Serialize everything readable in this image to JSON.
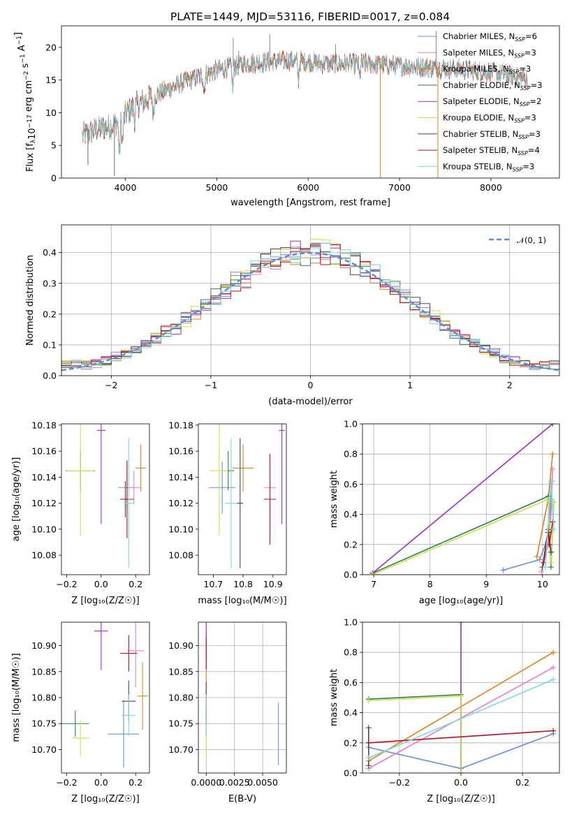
{
  "figure": {
    "title": "PLATE=1449, MJD=53116, FIBERID=0017, z=0.084"
  },
  "series_styles": [
    {
      "name": "Chabrier MILES",
      "nssp": "6",
      "color": "#6a8fd8"
    },
    {
      "name": "Salpeter MILES",
      "nssp": "3",
      "color": "#e880c0"
    },
    {
      "name": "Kroupa MILES",
      "nssp": "3",
      "color": "#e07f1d"
    },
    {
      "name": "Chabrier ELODIE",
      "nssp": "3",
      "color": "#2e7d4f"
    },
    {
      "name": "Salpeter ELODIE",
      "nssp": "2",
      "color": "#9b30b8"
    },
    {
      "name": "Kroupa ELODIE",
      "nssp": "3",
      "color": "#cbe04a"
    },
    {
      "name": "Chabrier STELIB",
      "nssp": "3",
      "color": "#4a4a4a"
    },
    {
      "name": "Salpeter STELIB",
      "nssp": "4",
      "color": "#b5121b"
    },
    {
      "name": "Kroupa STELIB",
      "nssp": "3",
      "color": "#7ed8e0"
    }
  ],
  "chart_data": [
    {
      "id": "spectrum",
      "type": "line",
      "xlabel": "wavelength [Angstrom, rest frame]",
      "ylabel_parts": {
        "pre": "Flux [f",
        "lambda": "λ",
        "post": "10",
        "exp": "−17",
        "units": " erg cm",
        "exp2": "−2",
        "units2": " s",
        "exp3": "−1",
        "units3": " A",
        "exp4": "−1",
        "close": "]"
      },
      "xlim": [
        3300,
        8750
      ],
      "ylim": [
        0,
        23.3
      ],
      "xticks": [
        4000,
        5000,
        6000,
        7000,
        8000
      ],
      "yticks": [
        0,
        5,
        10,
        15,
        20
      ],
      "continuum_knots": [
        [
          3530,
          6.5
        ],
        [
          3700,
          7.5
        ],
        [
          3850,
          8.0
        ],
        [
          3950,
          9.0
        ],
        [
          4100,
          11.0
        ],
        [
          4300,
          12.5
        ],
        [
          4600,
          14.5
        ],
        [
          5000,
          16.5
        ],
        [
          5300,
          17.5
        ],
        [
          5800,
          18.0
        ],
        [
          6200,
          17.5
        ],
        [
          6600,
          17.5
        ],
        [
          7000,
          17.2
        ],
        [
          7500,
          16.8
        ],
        [
          8000,
          16.2
        ],
        [
          8500,
          15.0
        ],
        [
          8750,
          14.5
        ]
      ],
      "absorption_features": [
        [
          3934,
          5.5
        ],
        [
          3969,
          4.0
        ],
        [
          4102,
          2.0
        ],
        [
          4305,
          3.0
        ],
        [
          4861,
          2.5
        ],
        [
          5175,
          3.5
        ],
        [
          5893,
          3.0
        ],
        [
          6563,
          2.0
        ]
      ],
      "spike_features": [
        [
          5180,
          21.5
        ],
        [
          5240,
          19.5
        ],
        [
          5580,
          22.0
        ],
        [
          6300,
          20.5
        ],
        [
          7400,
          22.5
        ]
      ],
      "drop_features": [
        [
          3880,
          0.3
        ],
        [
          6790,
          0.0
        ],
        [
          7420,
          0.0
        ],
        [
          3590,
          2.0
        ]
      ],
      "legend": "upper right"
    },
    {
      "id": "residuals",
      "type": "histogram",
      "xlabel": "(data-model)/error",
      "ylabel": "Normed distribution",
      "xlim": [
        -2.5,
        2.5
      ],
      "ylim": [
        0,
        0.49
      ],
      "xticks": [
        -2,
        -1,
        0,
        1,
        2
      ],
      "yticks": [
        0.0,
        0.1,
        0.2,
        0.3,
        0.4
      ],
      "bin_width": 0.1,
      "reference": {
        "label": "𝒩(0, 1)",
        "mean": 0,
        "sigma": 1,
        "color": "#5b8ed6"
      },
      "grid": true
    },
    {
      "id": "age-vs-Z",
      "type": "errorbar",
      "xlabel": "Z [log₁₀(Z/Z☉)]",
      "ylabel": "age  [log₁₀(age/yr)]",
      "xlim": [
        -0.23,
        0.28
      ],
      "ylim": [
        10.065,
        10.181
      ],
      "xticks": [
        -0.2,
        0.0,
        0.2
      ],
      "yticks": [
        10.08,
        10.1,
        10.12,
        10.14,
        10.16,
        10.18
      ],
      "points": [
        {
          "series": 0,
          "x": 0.15,
          "y": 10.132,
          "xerr": 0.05,
          "yerr": 0.02
        },
        {
          "series": 1,
          "x": 0.19,
          "y": 10.132,
          "xerr": 0.04,
          "yerr": 0.013
        },
        {
          "series": 2,
          "x": 0.23,
          "y": 10.147,
          "xerr": 0.03,
          "yerr": 0.018
        },
        {
          "series": 3,
          "x": -0.12,
          "y": 10.145,
          "xerr": 0.085,
          "yerr": 0.015
        },
        {
          "series": 4,
          "x": 0.0,
          "y": 10.176,
          "xerr": 0.025,
          "yerr": 0.072
        },
        {
          "series": 5,
          "x": -0.12,
          "y": 10.145,
          "xerr": 0.08,
          "yerr": 0.05
        },
        {
          "series": 6,
          "x": 0.14,
          "y": 10.123,
          "xerr": 0.02,
          "yerr": 0.014
        },
        {
          "series": 7,
          "x": 0.15,
          "y": 10.123,
          "xerr": 0.04,
          "yerr": 0.03
        },
        {
          "series": 8,
          "x": 0.16,
          "y": 10.12,
          "xerr": 0.03,
          "yerr": 0.05
        }
      ]
    },
    {
      "id": "age-vs-mass",
      "type": "errorbar",
      "xlabel": "mass [log₁₀(M/M☉)]",
      "ylabel": "",
      "xlim": [
        10.65,
        10.945
      ],
      "ylim": [
        10.065,
        10.181
      ],
      "xticks": [
        10.7,
        10.8,
        10.9
      ],
      "yticks": [
        10.08,
        10.1,
        10.12,
        10.14,
        10.16,
        10.18
      ],
      "points": [
        {
          "series": 0,
          "x": 10.73,
          "y": 10.132,
          "xerr": 0.045,
          "yerr": 0.02
        },
        {
          "series": 1,
          "x": 10.89,
          "y": 10.132,
          "xerr": 0.02,
          "yerr": 0.013
        },
        {
          "series": 2,
          "x": 10.8,
          "y": 10.147,
          "xerr": 0.035,
          "yerr": 0.018
        },
        {
          "series": 3,
          "x": 10.75,
          "y": 10.145,
          "xerr": 0.02,
          "yerr": 0.015
        },
        {
          "series": 4,
          "x": 10.93,
          "y": 10.176,
          "xerr": 0.01,
          "yerr": 0.072
        },
        {
          "series": 5,
          "x": 10.72,
          "y": 10.145,
          "xerr": 0.03,
          "yerr": 0.05
        },
        {
          "series": 6,
          "x": 10.79,
          "y": 10.12,
          "xerr": 0.01,
          "yerr": 0.05
        },
        {
          "series": 7,
          "x": 10.89,
          "y": 10.123,
          "xerr": 0.02,
          "yerr": 0.035
        },
        {
          "series": 8,
          "x": 10.76,
          "y": 10.12,
          "xerr": 0.02,
          "yerr": 0.05
        }
      ]
    },
    {
      "id": "weight-vs-age",
      "type": "line",
      "xlabel": "age  [log₁₀(age/yr)]",
      "ylabel": "mass weight",
      "xlim": [
        6.8,
        10.3
      ],
      "ylim": [
        0,
        1
      ],
      "xticks": [
        7,
        8,
        9,
        10
      ],
      "yticks": [
        0.0,
        0.2,
        0.4,
        0.6,
        0.8,
        1.0
      ],
      "grid": true,
      "lines": [
        {
          "series": 0,
          "x": [
            9.3,
            9.95,
            10.05,
            10.1,
            10.15,
            10.17
          ],
          "y": [
            0.03,
            0.1,
            0.2,
            0.28,
            0.5,
            0.62
          ]
        },
        {
          "series": 1,
          "x": [
            9.98,
            10.1,
            10.15,
            10.18
          ],
          "y": [
            0.02,
            0.2,
            0.4,
            0.7
          ]
        },
        {
          "series": 2,
          "x": [
            9.9,
            10.1,
            10.18
          ],
          "y": [
            0.12,
            0.5,
            0.8
          ]
        },
        {
          "series": 3,
          "x": [
            6.98,
            10.1,
            10.15,
            10.2
          ],
          "y": [
            0.01,
            0.52,
            0.05,
            0.48
          ]
        },
        {
          "series": 4,
          "x": [
            6.98,
            10.18
          ],
          "y": [
            0.01,
            1.0
          ]
        },
        {
          "series": 5,
          "x": [
            6.98,
            10.1,
            10.15,
            10.2
          ],
          "y": [
            0.0,
            0.5,
            0.08,
            0.48
          ]
        },
        {
          "series": 6,
          "x": [
            10.0,
            10.1,
            10.15
          ],
          "y": [
            0.05,
            0.3,
            0.15
          ]
        },
        {
          "series": 7,
          "x": [
            10.02,
            10.1,
            10.12,
            10.18
          ],
          "y": [
            0.08,
            0.28,
            0.2,
            0.35
          ]
        },
        {
          "series": 8,
          "x": [
            10.05,
            10.15,
            10.2
          ],
          "y": [
            0.05,
            0.62,
            0.3
          ]
        }
      ]
    },
    {
      "id": "mass-vs-Z",
      "type": "errorbar",
      "xlabel": "Z [log₁₀(Z/Z☉)]",
      "ylabel": "mass [log₁₀(M/M☉)]",
      "xlim": [
        -0.23,
        0.28
      ],
      "ylim": [
        10.655,
        10.945
      ],
      "xticks": [
        -0.2,
        0.0,
        0.2
      ],
      "yticks": [
        10.7,
        10.75,
        10.8,
        10.85,
        10.9
      ],
      "points": [
        {
          "series": 0,
          "x": 0.13,
          "y": 10.73,
          "xerr": 0.09,
          "yerr": 0.065
        },
        {
          "series": 1,
          "x": 0.2,
          "y": 10.89,
          "xerr": 0.05,
          "yerr": 0.07
        },
        {
          "series": 2,
          "x": 0.24,
          "y": 10.803,
          "xerr": 0.03,
          "yerr": 0.065
        },
        {
          "series": 3,
          "x": -0.15,
          "y": 10.75,
          "xerr": 0.08,
          "yerr": 0.025
        },
        {
          "series": 4,
          "x": 0.0,
          "y": 10.928,
          "xerr": 0.04,
          "yerr": 0.075
        },
        {
          "series": 5,
          "x": -0.12,
          "y": 10.722,
          "xerr": 0.05,
          "yerr": 0.035
        },
        {
          "series": 6,
          "x": 0.16,
          "y": 10.793,
          "xerr": 0.04,
          "yerr": 0.04
        },
        {
          "series": 7,
          "x": 0.16,
          "y": 10.885,
          "xerr": 0.05,
          "yerr": 0.035
        },
        {
          "series": 8,
          "x": 0.16,
          "y": 10.766,
          "xerr": 0.04,
          "yerr": 0.04
        }
      ]
    },
    {
      "id": "mass-vs-ebv",
      "type": "errorbar",
      "xlabel": "E(B-V)",
      "ylabel": "",
      "xlim": [
        -0.0007,
        0.0071
      ],
      "ylim": [
        10.655,
        10.945
      ],
      "xticks": [
        0.0,
        0.0025,
        0.005
      ],
      "xticklabels": [
        "0.0000",
        "0.0025",
        "0.0050"
      ],
      "yticks": [
        10.7,
        10.75,
        10.8,
        10.85,
        10.9
      ],
      "grid": true,
      "points": [
        {
          "series": 0,
          "x": 0.0064,
          "y": 10.73,
          "xerr": 0.0,
          "yerr": 0.06
        },
        {
          "series": 1,
          "x": 0.0,
          "y": 10.89,
          "xerr": 0.0,
          "yerr": 0.04
        },
        {
          "series": 2,
          "x": 0.0,
          "y": 10.8,
          "xerr": 0.0,
          "yerr": 0.06
        },
        {
          "series": 3,
          "x": 0.0,
          "y": 10.75,
          "xerr": 0.0,
          "yerr": 0.025
        },
        {
          "series": 4,
          "x": 0.0,
          "y": 10.92,
          "xerr": 0.0,
          "yerr": 0.05
        },
        {
          "series": 5,
          "x": 0.0,
          "y": 10.72,
          "xerr": 0.0,
          "yerr": 0.035
        },
        {
          "series": 6,
          "x": 0.0,
          "y": 10.79,
          "xerr": 0.0,
          "yerr": 0.04
        },
        {
          "series": 7,
          "x": 0.0,
          "y": 10.885,
          "xerr": 0.0,
          "yerr": 0.03
        },
        {
          "series": 8,
          "x": 0.0,
          "y": 10.766,
          "xerr": 0.0,
          "yerr": 0.04
        }
      ]
    },
    {
      "id": "weight-vs-Z",
      "type": "line",
      "xlabel": "Z [log₁₀(Z/Z☉)]",
      "ylabel": "mass weight",
      "xlim": [
        -0.32,
        0.32
      ],
      "ylim": [
        0,
        1
      ],
      "xticks": [
        -0.2,
        0.0,
        0.2
      ],
      "yticks": [
        0.0,
        0.2,
        0.4,
        0.6,
        0.8,
        1.0
      ],
      "grid": true,
      "lines": [
        {
          "series": 0,
          "x": [
            -0.3,
            0.0,
            0.3
          ],
          "y": [
            0.17,
            0.03,
            0.26
          ]
        },
        {
          "series": 1,
          "x": [
            -0.3,
            0.3
          ],
          "y": [
            0.03,
            0.7
          ]
        },
        {
          "series": 2,
          "x": [
            -0.3,
            0.3
          ],
          "y": [
            0.08,
            0.8
          ]
        },
        {
          "series": 3,
          "x": [
            -0.3,
            0.0,
            0.0
          ],
          "y": [
            0.49,
            0.52,
            0.0
          ]
        },
        {
          "series": 4,
          "x": [
            0.0,
            0.0
          ],
          "y": [
            1.0,
            0.0
          ]
        },
        {
          "series": 5,
          "x": [
            -0.3,
            0.0,
            0.0
          ],
          "y": [
            0.48,
            0.51,
            0.0
          ]
        },
        {
          "series": 6,
          "x": [
            -0.3,
            -0.3
          ],
          "y": [
            0.05,
            0.3
          ]
        },
        {
          "series": 7,
          "x": [
            -0.3,
            0.3
          ],
          "y": [
            0.2,
            0.28
          ]
        },
        {
          "series": 8,
          "x": [
            -0.3,
            0.3
          ],
          "y": [
            0.1,
            0.62
          ]
        }
      ]
    }
  ]
}
